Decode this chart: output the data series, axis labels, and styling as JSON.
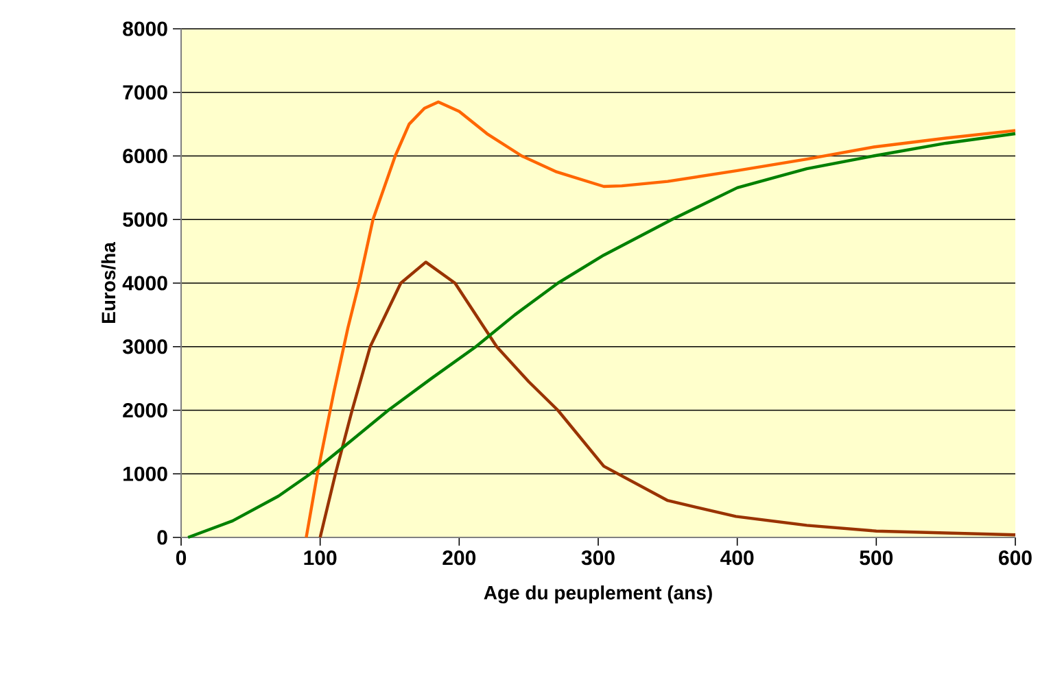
{
  "chart_data": {
    "type": "line",
    "xlabel": "Age du peuplement (ans)",
    "ylabel": "Euros/ha",
    "xlim": [
      0,
      600
    ],
    "ylim": [
      0,
      8000
    ],
    "xticks": [
      0,
      100,
      200,
      300,
      400,
      500,
      600
    ],
    "yticks": [
      0,
      1000,
      2000,
      3000,
      4000,
      5000,
      6000,
      7000,
      8000
    ],
    "grid": "y",
    "marker": "none",
    "line_style": "solid",
    "series": [
      {
        "color": "#ff6600",
        "x": [
          90,
          98,
          110,
          120,
          128,
          138,
          154,
          164,
          175,
          185,
          200,
          220,
          245,
          270,
          304,
          317,
          350,
          400,
          450,
          498,
          550,
          600
        ],
        "values": [
          0,
          1000,
          2300,
          3300,
          4000,
          5000,
          6000,
          6500,
          6750,
          6850,
          6700,
          6350,
          6000,
          5750,
          5520,
          5530,
          5600,
          5770,
          5950,
          6140,
          6280,
          6400
        ]
      },
      {
        "color": "#993300",
        "x": [
          100,
          111,
          123,
          136,
          158,
          176,
          197,
          227,
          250,
          271,
          304,
          350,
          399,
          450,
          500,
          550,
          600
        ],
        "values": [
          0,
          1000,
          2000,
          3000,
          4000,
          4330,
          4000,
          3000,
          2450,
          2000,
          1120,
          580,
          330,
          190,
          100,
          70,
          40
        ]
      },
      {
        "color": "#008000",
        "x": [
          5,
          37,
          70,
          93,
          120,
          149,
          180,
          212,
          240,
          271,
          304,
          353,
          400,
          450,
          498,
          550,
          600
        ],
        "values": [
          0,
          260,
          650,
          1000,
          1480,
          2000,
          2500,
          3000,
          3500,
          4000,
          4440,
          5000,
          5500,
          5800,
          6000,
          6200,
          6350
        ]
      }
    ]
  }
}
